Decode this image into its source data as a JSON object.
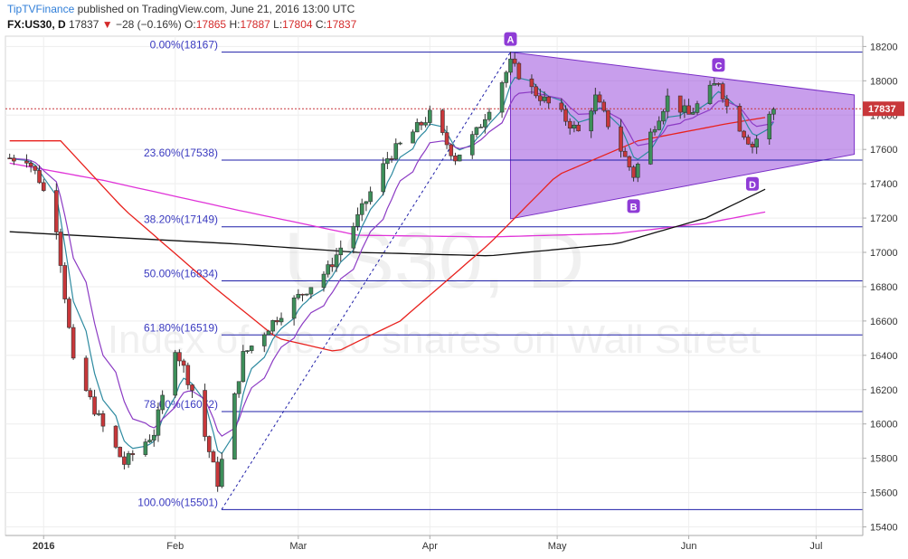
{
  "header": {
    "brand": "TipTVFinance",
    "published_text": "published on TradingView.com, June 21, 2016 13:00 UTC",
    "symbol": "FX:US30, D",
    "last": "17837",
    "change": "−28 (−0.16%)",
    "o_label": "O:",
    "o_value": "17865",
    "h_label": "H:",
    "h_value": "17887",
    "l_label": "L:",
    "l_value": "17804",
    "c_label": "C:",
    "c_value": "17837"
  },
  "watermark": {
    "main": "US30, D",
    "sub": "Index of the 30 shares on Wall Street"
  },
  "colors": {
    "up": "#3d8f5a",
    "down": "#c8373a",
    "fib": "#1f1fa8",
    "triangle_fill": "#9b4fdc",
    "ma_red": "#e8211d",
    "ma_black": "#111111",
    "ma_magenta": "#e033d8",
    "ma_teal": "#2d8aa0",
    "ma_purple": "#8c3bc4",
    "label_bg": "#8f3cd6",
    "price_tag": "#c8373a"
  },
  "chart_data": {
    "type": "candlestick",
    "y_range": [
      15350,
      18260
    ],
    "y_ticks": [
      "15400",
      "15600",
      "15800",
      "16000",
      "16200",
      "16400",
      "16600",
      "16800",
      "17000",
      "17200",
      "17400",
      "17600",
      "17800",
      "18000",
      "18200"
    ],
    "x_ticks": [
      {
        "label": "2016",
        "date": "2016-01-01"
      },
      {
        "label": "Feb",
        "date": "2016-02-01"
      },
      {
        "label": "Mar",
        "date": "2016-03-01"
      },
      {
        "label": "Apr",
        "date": "2016-04-01"
      },
      {
        "label": "May",
        "date": "2016-05-01"
      },
      {
        "label": "Jun",
        "date": "2016-06-01"
      },
      {
        "label": "Jul",
        "date": "2016-07-01"
      }
    ],
    "last_price": "17837",
    "fib_levels": [
      {
        "label": "0.00%(18167)",
        "value": 18167
      },
      {
        "label": "23.60%(17538)",
        "value": 17538
      },
      {
        "label": "38.20%(17149)",
        "value": 17149
      },
      {
        "label": "50.00%(16834)",
        "value": 16834
      },
      {
        "label": "61.80%(16519)",
        "value": 16519
      },
      {
        "label": "78.60%(16072)",
        "value": 16072
      },
      {
        "label": "100.00%(15501)",
        "value": 15501
      }
    ],
    "points": [
      {
        "label": "A",
        "date": "2016-04-20",
        "value": 18167
      },
      {
        "label": "B",
        "date": "2016-05-19",
        "value": 17330
      },
      {
        "label": "C",
        "date": "2016-06-08",
        "value": 18016
      },
      {
        "label": "D",
        "date": "2016-06-16",
        "value": 17460
      }
    ],
    "anchors": [
      {
        "date": "2015-12-28",
        "close": 17550
      },
      {
        "date": "2015-12-31",
        "close": 17425
      },
      {
        "date": "2016-01-04",
        "close": 17150
      },
      {
        "date": "2016-01-08",
        "close": 16350
      },
      {
        "date": "2016-01-15",
        "close": 15980
      },
      {
        "date": "2016-01-20",
        "close": 15770
      },
      {
        "date": "2016-01-27",
        "close": 15950
      },
      {
        "date": "2016-02-01",
        "close": 16450
      },
      {
        "date": "2016-02-05",
        "close": 16200
      },
      {
        "date": "2016-02-11",
        "close": 15660
      },
      {
        "date": "2016-02-17",
        "close": 16400
      },
      {
        "date": "2016-02-26",
        "close": 16650
      },
      {
        "date": "2016-03-08",
        "close": 16900
      },
      {
        "date": "2016-03-15",
        "close": 17200
      },
      {
        "date": "2016-03-22",
        "close": 17550
      },
      {
        "date": "2016-04-01",
        "close": 17800
      },
      {
        "date": "2016-04-07",
        "close": 17550
      },
      {
        "date": "2016-04-12",
        "close": 17700
      },
      {
        "date": "2016-04-20",
        "close": 18100
      },
      {
        "date": "2016-04-25",
        "close": 17950
      },
      {
        "date": "2016-05-02",
        "close": 17800
      },
      {
        "date": "2016-05-06",
        "close": 17700
      },
      {
        "date": "2016-05-10",
        "close": 17900
      },
      {
        "date": "2016-05-19",
        "close": 17450
      },
      {
        "date": "2016-05-24",
        "close": 17750
      },
      {
        "date": "2016-05-27",
        "close": 17900
      },
      {
        "date": "2016-06-01",
        "close": 17800
      },
      {
        "date": "2016-06-08",
        "close": 18000
      },
      {
        "date": "2016-06-10",
        "close": 17850
      },
      {
        "date": "2016-06-16",
        "close": 17620
      },
      {
        "date": "2016-06-21",
        "close": 17837
      }
    ],
    "sma_black": [
      {
        "date": "2015-12-24",
        "value": 17120
      },
      {
        "date": "2016-02-15",
        "value": 17050
      },
      {
        "date": "2016-03-15",
        "value": 17000
      },
      {
        "date": "2016-04-15",
        "value": 16980
      },
      {
        "date": "2016-05-15",
        "value": 17050
      },
      {
        "date": "2016-06-05",
        "value": 17200
      },
      {
        "date": "2016-06-20",
        "value": 17380
      }
    ],
    "sma_magenta": [
      {
        "date": "2015-12-24",
        "value": 17520
      },
      {
        "date": "2016-01-15",
        "value": 17420
      },
      {
        "date": "2016-02-15",
        "value": 17250
      },
      {
        "date": "2016-03-15",
        "value": 17100
      },
      {
        "date": "2016-04-15",
        "value": 17090
      },
      {
        "date": "2016-05-15",
        "value": 17110
      },
      {
        "date": "2016-06-05",
        "value": 17170
      },
      {
        "date": "2016-06-20",
        "value": 17240
      }
    ],
    "sma_red": [
      {
        "date": "2015-12-24",
        "value": 17650
      },
      {
        "date": "2016-01-05",
        "value": 17650
      },
      {
        "date": "2016-01-20",
        "value": 17250
      },
      {
        "date": "2016-02-10",
        "value": 16800
      },
      {
        "date": "2016-02-25",
        "value": 16500
      },
      {
        "date": "2016-03-10",
        "value": 16420
      },
      {
        "date": "2016-03-25",
        "value": 16600
      },
      {
        "date": "2016-04-15",
        "value": 17050
      },
      {
        "date": "2016-05-01",
        "value": 17450
      },
      {
        "date": "2016-05-20",
        "value": 17650
      },
      {
        "date": "2016-06-10",
        "value": 17750
      },
      {
        "date": "2016-06-20",
        "value": 17790
      }
    ]
  }
}
